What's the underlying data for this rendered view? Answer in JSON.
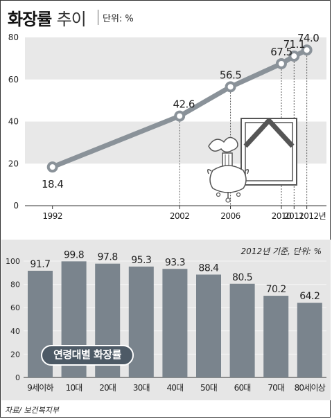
{
  "header": {
    "title": "화장률",
    "title_sub": "추이",
    "unit": "단위: %"
  },
  "chart_data": [
    {
      "type": "line",
      "x": [
        "1992",
        "2002",
        "2006",
        "2010",
        "2011",
        "2012"
      ],
      "values": [
        18.4,
        42.6,
        56.5,
        67.5,
        71.1,
        74.0
      ],
      "value_labels": [
        "18.4",
        "42.6",
        "56.5",
        "67.5",
        "71.1",
        "74.0"
      ],
      "x_tick_labels": [
        "1992",
        "2002",
        "2006",
        "2010",
        "2011",
        "2012년"
      ],
      "y_ticks": [
        "0",
        "20",
        "40",
        "60",
        "80"
      ],
      "ylim": [
        0,
        80
      ],
      "grid": "alternating horizontal bands",
      "line_color": "#8a9299",
      "marker_color": "#ffffff"
    },
    {
      "type": "bar",
      "note": "2012년 기준, 단위: %",
      "categories": [
        "9세이하",
        "10대",
        "20대",
        "30대",
        "40대",
        "50대",
        "60대",
        "70대",
        "80세이상"
      ],
      "values": [
        91.7,
        99.8,
        97.8,
        95.3,
        93.3,
        88.4,
        80.5,
        70.2,
        64.2
      ],
      "value_labels": [
        "91.7",
        "99.8",
        "97.8",
        "95.3",
        "93.3",
        "88.4",
        "80.5",
        "70.2",
        "64.2"
      ],
      "y_ticks": [
        "0",
        "20",
        "40",
        "60",
        "80",
        "100"
      ],
      "ylim": [
        0,
        100
      ],
      "badge": "연령대별 화장률",
      "bar_color": "#7a848d"
    }
  ],
  "source": "자료/ 보건복지부",
  "colors": {
    "band": "#e8e8e8",
    "panel": "#e6e6e6",
    "line": "#8a9299",
    "bar": "#7a848d",
    "badge": "#4d5a66"
  },
  "illustration": "urn-and-mourning-frame-icon"
}
